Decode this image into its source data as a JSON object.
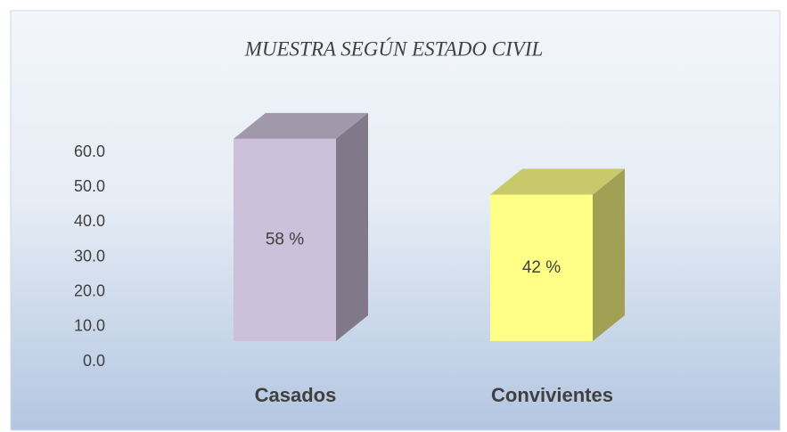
{
  "chart_data": {
    "type": "bar3d",
    "title": "MUESTRA SEGÚN ESTADO CIVIL",
    "categories": [
      "Casados",
      "Convivientes"
    ],
    "values": [
      58,
      42
    ],
    "value_labels": [
      "58 %",
      "42 %"
    ],
    "colors": [
      "#ccc0da",
      "#ffff88"
    ],
    "ylim": [
      0,
      60
    ],
    "yticks": [
      {
        "value": 0,
        "label": "0.0"
      },
      {
        "value": 10,
        "label": "10.0"
      },
      {
        "value": 20,
        "label": "20.0"
      },
      {
        "value": 30,
        "label": "30.0"
      },
      {
        "value": 40,
        "label": "40.0"
      },
      {
        "value": 50,
        "label": "50.0"
      },
      {
        "value": 60,
        "label": "60.0"
      }
    ],
    "grid": false
  }
}
